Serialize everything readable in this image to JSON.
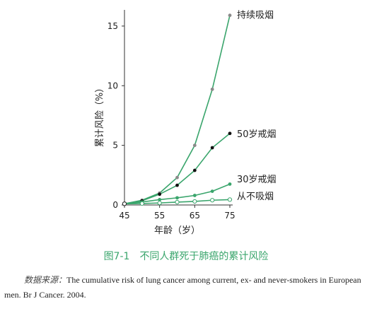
{
  "chart_data": {
    "type": "line",
    "xlabel": "年龄（岁）",
    "ylabel": "累计风险（%）",
    "x": [
      45,
      50,
      55,
      60,
      65,
      70,
      75
    ],
    "x_ticks": [
      "45",
      "55",
      "65",
      "75"
    ],
    "y_ticks": [
      "0",
      "5",
      "10",
      "15"
    ],
    "xlim": [
      45,
      75
    ],
    "ylim": [
      0,
      16
    ],
    "grid": false,
    "series": [
      {
        "name": "持续吸烟",
        "values": [
          0.1,
          0.4,
          1.0,
          2.3,
          5.0,
          9.7,
          15.9
        ],
        "marker": "gray-filled"
      },
      {
        "name": "50岁戒烟",
        "values": [
          0.1,
          0.35,
          0.9,
          1.65,
          2.9,
          4.8,
          6.0
        ],
        "marker": "black-filled"
      },
      {
        "name": "30岁戒烟",
        "values": [
          0.1,
          0.25,
          0.45,
          0.6,
          0.8,
          1.15,
          1.75
        ],
        "marker": "green-filled"
      },
      {
        "name": "从不吸烟",
        "values": [
          0.1,
          0.12,
          0.17,
          0.24,
          0.3,
          0.4,
          0.45
        ],
        "marker": "hollow"
      }
    ],
    "colors": {
      "line": "#3aa56c",
      "gray_marker": "#8a8a8a",
      "black_marker": "#111111"
    }
  },
  "caption": {
    "number": "图7-1",
    "text": "不同人群死于肺癌的累计风险"
  },
  "source": {
    "label": "数据来源：",
    "text": "The cumulative risk of lung cancer among current, ex- and never-smokers in European men. Br J Cancer. 2004."
  }
}
